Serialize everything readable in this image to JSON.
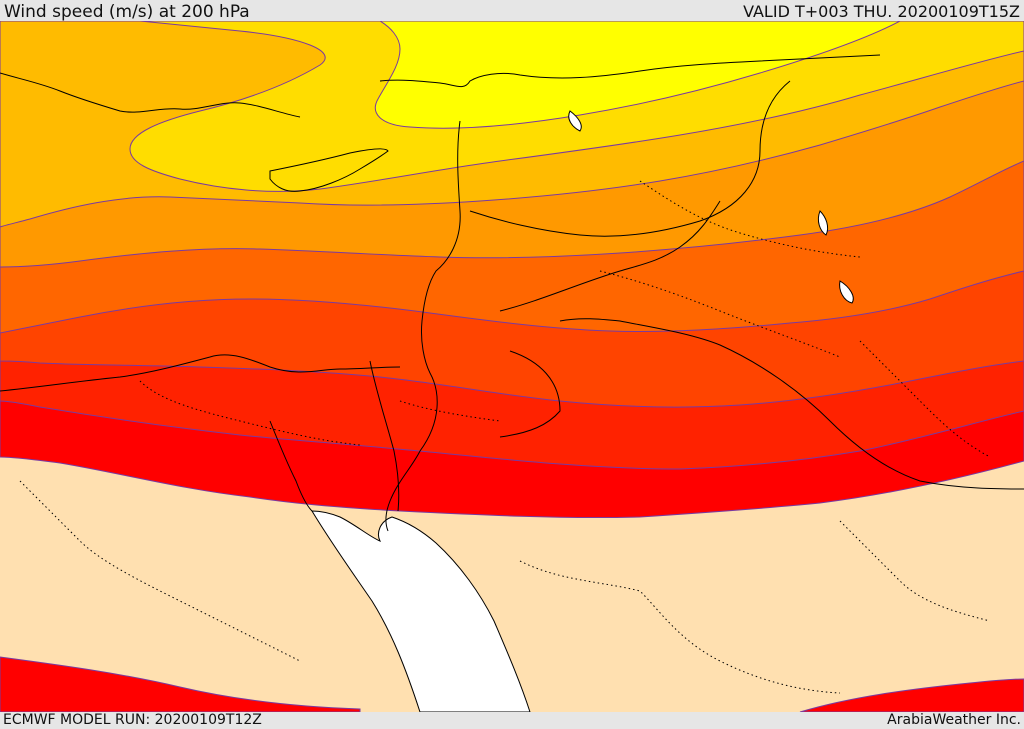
{
  "header": {
    "title": "Wind speed (m/s) at 200 hPa",
    "valid": "VALID T+003 THU. 20200109T15Z"
  },
  "footer": {
    "model_run": "ECMWF MODEL RUN: 20200109T12Z",
    "credit": "ArabiaWeather Inc."
  },
  "colors": {
    "band_1": "#ffff00",
    "band_2": "#ffdd00",
    "band_3": "#ffbb00",
    "band_4": "#ff9900",
    "band_5": "#ff6600",
    "band_6": "#ff4400",
    "band_7": "#ff2200",
    "band_8": "#ff0000",
    "low_wind": "#ffe0b0",
    "sea": "#ffffff",
    "border": "#000000"
  }
}
